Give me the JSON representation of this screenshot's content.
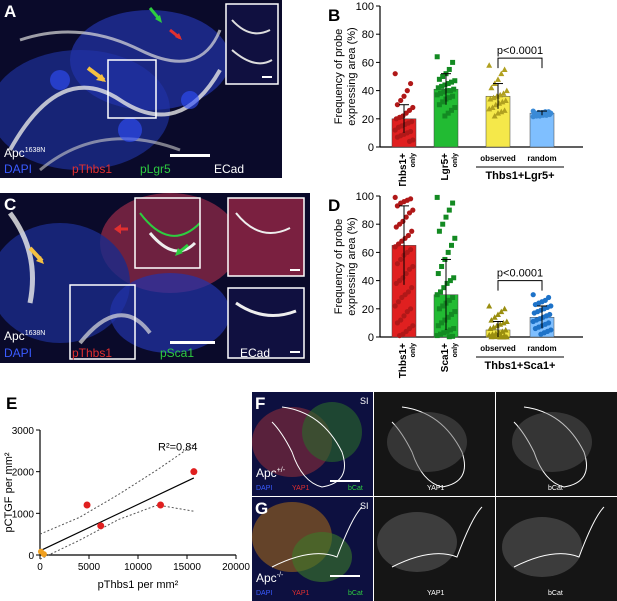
{
  "panels": {
    "A": {
      "letter": "A",
      "genotype": "Apc",
      "genotype_sup": "1638N",
      "legend": [
        "DAPI",
        "pThbs1",
        "pLgr5",
        "ECad"
      ]
    },
    "B": {
      "letter": "B"
    },
    "C": {
      "letter": "C",
      "genotype": "Apc",
      "genotype_sup": "1638N",
      "legend": [
        "DAPI",
        "pThbs1",
        "pSca1",
        "ECad"
      ]
    },
    "D": {
      "letter": "D"
    },
    "E": {
      "letter": "E"
    },
    "F": {
      "letter": "F",
      "region": "SI",
      "genotype": "Apc",
      "genotype_sup": "+/-",
      "labels": [
        "DAPI",
        "YAP1",
        "bCat"
      ],
      "col_labels": [
        "YAP1",
        "bCat"
      ]
    },
    "G": {
      "letter": "G",
      "region": "SI",
      "genotype": "Apc",
      "genotype_sup": "-/-",
      "labels": [
        "DAPI",
        "YAP1",
        "bCat"
      ],
      "col_labels": [
        "YAP1",
        "bCat"
      ]
    }
  },
  "colors": {
    "dapi": "#3a5bff",
    "red": "#e03030",
    "green": "#2ecc40",
    "white": "#ffffff",
    "yellow": "#f0e040",
    "blue_bar": "#7fbfff",
    "olive": "#c8bc20"
  },
  "chart_data": [
    {
      "panel": "B",
      "type": "bar",
      "ylabel": "Frequency of probe expressing area (%)",
      "ylim": [
        0,
        100
      ],
      "yticks": [
        0,
        20,
        40,
        60,
        80,
        100
      ],
      "categories": [
        "Thbs1+ only",
        "Lgr5+ only",
        "observed",
        "random"
      ],
      "category_labels": [
        [
          "Thbs1+",
          "only"
        ],
        [
          "Lgr5+",
          "only"
        ],
        [
          "observed"
        ],
        [
          "random"
        ]
      ],
      "group_label": "Thbs1+Lgr5+",
      "values": [
        20,
        41,
        36,
        24
      ],
      "errors": [
        10,
        11,
        9,
        1.5
      ],
      "bar_colors": [
        "#e02020",
        "#22bb33",
        "#f5e84a",
        "#7fbfff"
      ],
      "point_colors": [
        "#b01818",
        "#138a22",
        "#b0a020",
        "#3a8ad6"
      ],
      "point_markers": [
        "circle",
        "square",
        "triangle",
        "circle"
      ],
      "points": [
        [
          52,
          45,
          40,
          36,
          33,
          30,
          28,
          26,
          24,
          22,
          21,
          20,
          18,
          17,
          16,
          15,
          14,
          12,
          11,
          10,
          9,
          8,
          7,
          5,
          4
        ],
        [
          64,
          60,
          55,
          52,
          50,
          48,
          47,
          46,
          45,
          44,
          43,
          42,
          41,
          40,
          40,
          39,
          38,
          37,
          36,
          35,
          34,
          32,
          30,
          28,
          26,
          24,
          22
        ],
        [
          58,
          55,
          52,
          48,
          45,
          42,
          40,
          38,
          37,
          36,
          35,
          34,
          33,
          32,
          31,
          30,
          28,
          27,
          26,
          25,
          24,
          22
        ],
        [
          25.5,
          25,
          25,
          24.5,
          24.5,
          24,
          24,
          24,
          23.5,
          23.5,
          23,
          23,
          23,
          22.5,
          22.5,
          22,
          22,
          21.5
        ]
      ],
      "annotation": "p<0.0001"
    },
    {
      "panel": "D",
      "type": "bar",
      "ylabel": "Frequency of probe expressing area (%)",
      "ylim": [
        0,
        100
      ],
      "yticks": [
        0,
        20,
        40,
        60,
        80,
        100
      ],
      "categories": [
        "Thbs1+ only",
        "Sca1+ only",
        "observed",
        "random"
      ],
      "category_labels": [
        [
          "Thbs1+",
          "only"
        ],
        [
          "Sca1+",
          "only"
        ],
        [
          "observed"
        ],
        [
          "random"
        ]
      ],
      "group_label": "Thbs1+Sca1+",
      "values": [
        65,
        30,
        5,
        14
      ],
      "errors": [
        28,
        25,
        6,
        8
      ],
      "bar_colors": [
        "#e02020",
        "#22bb33",
        "#f5e84a",
        "#7fbfff"
      ],
      "point_colors": [
        "#b01818",
        "#138a22",
        "#9a8e10",
        "#1d72c8"
      ],
      "point_markers": [
        "circle",
        "square",
        "triangle",
        "circle"
      ],
      "points": [
        [
          99,
          98,
          97,
          96,
          95,
          93,
          90,
          88,
          85,
          82,
          80,
          78,
          75,
          72,
          70,
          68,
          66,
          64,
          62,
          60,
          58,
          55,
          52,
          50,
          48,
          45,
          42,
          40,
          38,
          35,
          32,
          30,
          28,
          25,
          22,
          20,
          18,
          15,
          12,
          10,
          8,
          6,
          4,
          2,
          1
        ],
        [
          99,
          95,
          90,
          85,
          80,
          75,
          70,
          65,
          60,
          55,
          50,
          45,
          42,
          40,
          38,
          35,
          32,
          30,
          28,
          26,
          24,
          22,
          20,
          18,
          16,
          14,
          12,
          10,
          8,
          6,
          5,
          4,
          3,
          2,
          1,
          0.5,
          0.2
        ],
        [
          22,
          20,
          18,
          16,
          14,
          12,
          11,
          10,
          9,
          8,
          7,
          6,
          5,
          4,
          3,
          2.5,
          2,
          1.5,
          1,
          0.8,
          0.5,
          0.3,
          0.2,
          0.1,
          0,
          0
        ],
        [
          30,
          28,
          26,
          25,
          24,
          23,
          22,
          21,
          20,
          19,
          18,
          17,
          16,
          15,
          14,
          13,
          12,
          11,
          10,
          9,
          8,
          7,
          6,
          5,
          4,
          3,
          2
        ]
      ],
      "annotation": "p<0.0001"
    },
    {
      "panel": "E",
      "type": "scatter",
      "xlabel": "pThbs1 per mm²",
      "ylabel": "pCTGF per mm²",
      "xlim": [
        0,
        20000
      ],
      "ylim": [
        0,
        3000
      ],
      "xticks": [
        0,
        5000,
        10000,
        15000,
        20000
      ],
      "yticks": [
        0,
        1000,
        2000,
        3000
      ],
      "red_points": [
        {
          "x": 4800,
          "y": 1200
        },
        {
          "x": 6200,
          "y": 700
        },
        {
          "x": 12300,
          "y": 1200
        },
        {
          "x": 15700,
          "y": 2000
        }
      ],
      "orange_points": [
        {
          "x": 100,
          "y": 80
        },
        {
          "x": 400,
          "y": 20
        }
      ],
      "fit": {
        "x0": 0,
        "y0": 100,
        "x1": 15700,
        "y1": 1850
      },
      "ci_upper": [
        {
          "x": 0,
          "y": 500
        },
        {
          "x": 4000,
          "y": 900
        },
        {
          "x": 8000,
          "y": 1450
        },
        {
          "x": 12000,
          "y": 2050
        },
        {
          "x": 15700,
          "y": 2650
        }
      ],
      "ci_lower": [
        {
          "x": 0,
          "y": -300
        },
        {
          "x": 4000,
          "y": 350
        },
        {
          "x": 8000,
          "y": 850
        },
        {
          "x": 12000,
          "y": 1200
        },
        {
          "x": 15700,
          "y": 1050
        }
      ],
      "annotation": "R²=0.84"
    }
  ]
}
